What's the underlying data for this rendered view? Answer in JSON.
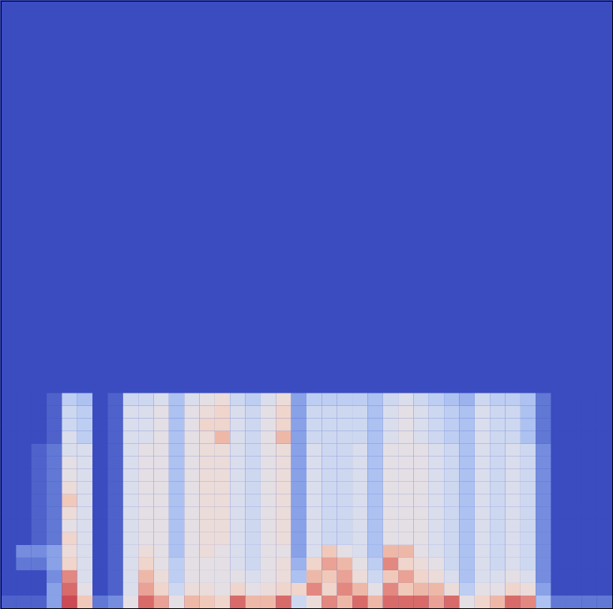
{
  "chart_data": {
    "type": "heatmap",
    "tick_labels": false,
    "xlim": [
      0,
      40
    ],
    "ylim": [
      0,
      48
    ],
    "zlim": [
      0,
      1
    ],
    "cells": [
      [
        0.05,
        0.05,
        0.05,
        0.2,
        0.9,
        0.65,
        0.1,
        0.15,
        0.5,
        0.85,
        0.75,
        0.5,
        0.7,
        0.65,
        0.6,
        0.85,
        0.7,
        0.7,
        0.85,
        0.4,
        0.55,
        0.8,
        0.7,
        0.85,
        0.7,
        0.85,
        0.85,
        0.85,
        0.75,
        0.85,
        0.5,
        0.6,
        0.7,
        0.85,
        0.8,
        0.3,
        0.1,
        0.1,
        0.1,
        0.1
      ],
      [
        0,
        0,
        0,
        0.2,
        0.85,
        0.5,
        0,
        0.05,
        0.45,
        0.75,
        0.6,
        0.4,
        0.55,
        0.55,
        0.5,
        0.6,
        0.5,
        0.55,
        0.6,
        0.6,
        0.8,
        0.6,
        0.8,
        0.7,
        0.5,
        0.8,
        0.65,
        0.7,
        0.7,
        0.55,
        0.35,
        0.5,
        0.5,
        0.6,
        0.55,
        0.2,
        0,
        0,
        0,
        0
      ],
      [
        0,
        0,
        0,
        0.15,
        0.8,
        0.45,
        0,
        0.05,
        0.45,
        0.7,
        0.55,
        0.35,
        0.5,
        0.5,
        0.5,
        0.5,
        0.45,
        0.5,
        0.55,
        0.3,
        0.7,
        0.65,
        0.75,
        0.55,
        0.4,
        0.65,
        0.75,
        0.6,
        0.55,
        0.45,
        0.3,
        0.45,
        0.45,
        0.5,
        0.45,
        0.15,
        0,
        0,
        0,
        0
      ],
      [
        0,
        0.1,
        0.1,
        0.2,
        0.6,
        0.45,
        0,
        0.05,
        0.45,
        0.6,
        0.5,
        0.35,
        0.5,
        0.5,
        0.5,
        0.45,
        0.4,
        0.5,
        0.55,
        0.25,
        0.6,
        0.75,
        0.7,
        0.5,
        0.35,
        0.8,
        0.6,
        0.55,
        0.5,
        0.4,
        0.3,
        0.45,
        0.4,
        0.45,
        0.4,
        0.15,
        0,
        0,
        0,
        0
      ],
      [
        0,
        0.15,
        0.15,
        0.2,
        0.55,
        0.45,
        0,
        0.05,
        0.45,
        0.55,
        0.5,
        0.3,
        0.5,
        0.55,
        0.5,
        0.45,
        0.4,
        0.5,
        0.5,
        0.2,
        0.45,
        0.65,
        0.5,
        0.45,
        0.3,
        0.7,
        0.7,
        0.5,
        0.45,
        0.4,
        0.3,
        0.45,
        0.4,
        0.45,
        0.4,
        0.15,
        0,
        0,
        0,
        0
      ],
      [
        0,
        0,
        0.05,
        0.1,
        0.6,
        0.45,
        0,
        0.05,
        0.45,
        0.5,
        0.5,
        0.3,
        0.5,
        0.55,
        0.55,
        0.45,
        0.4,
        0.5,
        0.55,
        0.2,
        0.45,
        0.4,
        0.4,
        0.45,
        0.3,
        0.5,
        0.5,
        0.5,
        0.45,
        0.4,
        0.3,
        0.45,
        0.4,
        0.45,
        0.4,
        0.15,
        0,
        0,
        0,
        0
      ],
      [
        0,
        0,
        0.05,
        0.1,
        0.5,
        0.45,
        0,
        0.05,
        0.45,
        0.5,
        0.5,
        0.3,
        0.5,
        0.55,
        0.55,
        0.45,
        0.4,
        0.5,
        0.55,
        0.2,
        0.45,
        0.4,
        0.4,
        0.45,
        0.3,
        0.5,
        0.5,
        0.5,
        0.45,
        0.4,
        0.3,
        0.45,
        0.4,
        0.45,
        0.4,
        0.15,
        0,
        0,
        0,
        0
      ],
      [
        0,
        0,
        0.05,
        0.1,
        0.55,
        0.45,
        0,
        0.05,
        0.45,
        0.5,
        0.5,
        0.3,
        0.5,
        0.55,
        0.55,
        0.45,
        0.4,
        0.5,
        0.55,
        0.2,
        0.45,
        0.4,
        0.4,
        0.45,
        0.3,
        0.5,
        0.5,
        0.5,
        0.45,
        0.4,
        0.3,
        0.45,
        0.4,
        0.45,
        0.4,
        0.15,
        0,
        0,
        0,
        0
      ],
      [
        0,
        0,
        0.05,
        0.1,
        0.65,
        0.45,
        0,
        0.05,
        0.45,
        0.5,
        0.5,
        0.3,
        0.5,
        0.55,
        0.55,
        0.45,
        0.4,
        0.5,
        0.55,
        0.2,
        0.45,
        0.4,
        0.4,
        0.45,
        0.3,
        0.5,
        0.5,
        0.5,
        0.45,
        0.4,
        0.3,
        0.45,
        0.4,
        0.45,
        0.4,
        0.15,
        0,
        0,
        0,
        0
      ],
      [
        0,
        0,
        0.05,
        0.1,
        0.55,
        0.45,
        0,
        0.05,
        0.45,
        0.5,
        0.5,
        0.3,
        0.5,
        0.55,
        0.55,
        0.45,
        0.4,
        0.5,
        0.55,
        0.2,
        0.45,
        0.4,
        0.4,
        0.45,
        0.3,
        0.5,
        0.5,
        0.5,
        0.45,
        0.4,
        0.3,
        0.45,
        0.4,
        0.45,
        0.4,
        0.15,
        0,
        0,
        0,
        0
      ],
      [
        0,
        0,
        0.05,
        0.1,
        0.5,
        0.45,
        0,
        0.05,
        0.45,
        0.5,
        0.5,
        0.3,
        0.5,
        0.55,
        0.55,
        0.45,
        0.4,
        0.5,
        0.55,
        0.2,
        0.45,
        0.4,
        0.4,
        0.45,
        0.3,
        0.5,
        0.5,
        0.5,
        0.45,
        0.4,
        0.3,
        0.45,
        0.4,
        0.45,
        0.4,
        0.15,
        0,
        0,
        0,
        0
      ],
      [
        0,
        0,
        0.05,
        0.1,
        0.5,
        0.45,
        0,
        0.05,
        0.45,
        0.5,
        0.5,
        0.3,
        0.5,
        0.55,
        0.55,
        0.45,
        0.4,
        0.5,
        0.55,
        0.2,
        0.45,
        0.4,
        0.4,
        0.45,
        0.3,
        0.5,
        0.5,
        0.5,
        0.45,
        0.4,
        0.3,
        0.45,
        0.4,
        0.45,
        0.4,
        0.15,
        0,
        0,
        0,
        0
      ],
      [
        0,
        0,
        0.05,
        0.1,
        0.45,
        0.45,
        0,
        0.05,
        0.45,
        0.5,
        0.5,
        0.3,
        0.5,
        0.55,
        0.55,
        0.45,
        0.4,
        0.5,
        0.55,
        0.2,
        0.45,
        0.4,
        0.4,
        0.45,
        0.3,
        0.5,
        0.5,
        0.5,
        0.45,
        0.4,
        0.3,
        0.45,
        0.4,
        0.45,
        0.4,
        0.15,
        0,
        0,
        0,
        0
      ],
      [
        0,
        0,
        0,
        0.05,
        0.45,
        0.35,
        0,
        0.05,
        0.45,
        0.45,
        0.5,
        0.3,
        0.5,
        0.55,
        0.7,
        0.45,
        0.4,
        0.5,
        0.7,
        0.2,
        0.4,
        0.4,
        0.4,
        0.4,
        0.3,
        0.45,
        0.5,
        0.45,
        0.4,
        0.35,
        0.3,
        0.45,
        0.4,
        0.4,
        0.3,
        0.1,
        0,
        0,
        0,
        0
      ],
      [
        0,
        0,
        0,
        0.05,
        0.4,
        0.35,
        0,
        0.05,
        0.45,
        0.45,
        0.5,
        0.3,
        0.5,
        0.6,
        0.6,
        0.45,
        0.4,
        0.5,
        0.6,
        0.2,
        0.4,
        0.4,
        0.4,
        0.4,
        0.3,
        0.45,
        0.5,
        0.45,
        0.4,
        0.35,
        0.3,
        0.45,
        0.4,
        0.4,
        0.3,
        0.1,
        0,
        0,
        0,
        0
      ],
      [
        0,
        0,
        0,
        0.05,
        0.4,
        0.35,
        0,
        0.05,
        0.45,
        0.45,
        0.5,
        0.3,
        0.5,
        0.55,
        0.6,
        0.45,
        0.4,
        0.5,
        0.6,
        0.2,
        0.4,
        0.4,
        0.4,
        0.4,
        0.3,
        0.45,
        0.5,
        0.45,
        0.4,
        0.35,
        0.3,
        0.45,
        0.4,
        0.4,
        0.3,
        0.1,
        0,
        0,
        0,
        0
      ],
      [
        0,
        0,
        0,
        0.05,
        0.35,
        0.3,
        0,
        0.05,
        0.4,
        0.4,
        0.45,
        0.3,
        0.45,
        0.5,
        0.55,
        0.4,
        0.35,
        0.45,
        0.55,
        0.2,
        0.35,
        0.35,
        0.35,
        0.35,
        0.3,
        0.4,
        0.45,
        0.4,
        0.35,
        0.3,
        0.25,
        0.4,
        0.35,
        0.35,
        0.3,
        0.1,
        0,
        0,
        0,
        0
      ]
    ]
  }
}
